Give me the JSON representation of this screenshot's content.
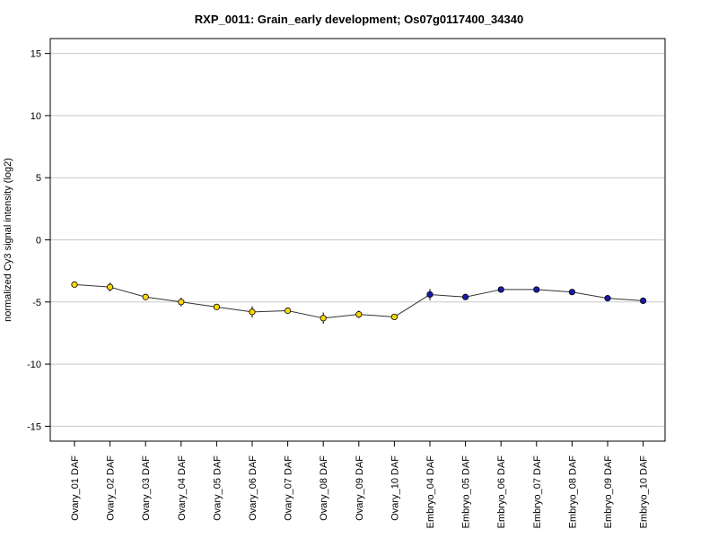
{
  "chart_data": {
    "type": "line",
    "title": "RXP_0011: Grain_early development; Os07g0117400_34340",
    "xlabel": "",
    "ylabel": "normalized Cy3 signal intensity (log2)",
    "ylim": [
      -16.2,
      16.2
    ],
    "yticks": [
      -15,
      -10,
      -5,
      0,
      5,
      10,
      15
    ],
    "grid": true,
    "categories": [
      "Ovary_01 DAF",
      "Ovary_02 DAF",
      "Ovary_03 DAF",
      "Ovary_04 DAF",
      "Ovary_05 DAF",
      "Ovary_06 DAF",
      "Ovary_07 DAF",
      "Ovary_08 DAF",
      "Ovary_09 DAF",
      "Ovary_10 DAF",
      "Embryo_04 DAF",
      "Embryo_05 DAF",
      "Embryo_06 DAF",
      "Embryo_07 DAF",
      "Embryo_08 DAF",
      "Embryo_09 DAF",
      "Embryo_10 DAF"
    ],
    "values": [
      -3.6,
      -3.8,
      -4.6,
      -5.0,
      -5.4,
      -5.8,
      -5.7,
      -6.3,
      -6.0,
      -6.2,
      -4.4,
      -4.6,
      -4.0,
      -4.0,
      -4.2,
      -4.7,
      -4.9
    ],
    "errors": [
      0.2,
      0.35,
      0.15,
      0.35,
      0.15,
      0.45,
      0.1,
      0.45,
      0.3,
      0.15,
      0.45,
      0.1,
      0.15,
      0.1,
      0.15,
      0.1,
      0.1
    ],
    "point_colors": [
      "#ffd700",
      "#ffd700",
      "#ffd700",
      "#ffd700",
      "#ffd700",
      "#ffd700",
      "#ffd700",
      "#ffd700",
      "#ffd700",
      "#ffd700",
      "#1a1aa8",
      "#1a1aa8",
      "#1a1aa8",
      "#1a1aa8",
      "#1a1aa8",
      "#1a1aa8",
      "#1a1aa8"
    ],
    "line_color": "#333333",
    "grid_color": "#c8c8c8"
  }
}
